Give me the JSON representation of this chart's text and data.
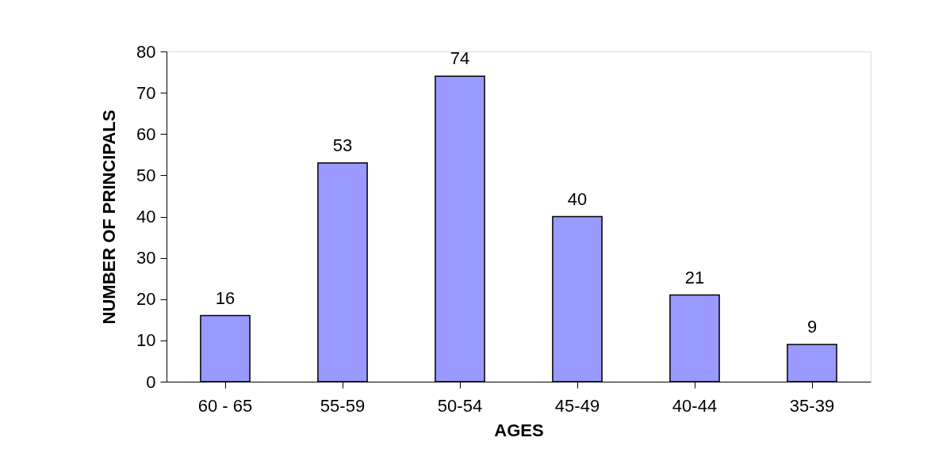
{
  "chart_data": {
    "type": "bar",
    "xlabel": "AGES",
    "ylabel": "NUMBER OF PRINCIPALS",
    "categories": [
      "60 - 65",
      "55-59",
      "50-54",
      "45-49",
      "40-44",
      "35-39"
    ],
    "values": [
      16,
      53,
      74,
      40,
      21,
      9
    ],
    "color": "#9999ff",
    "ylim": [
      0,
      80
    ],
    "yticks": [
      0,
      10,
      20,
      30,
      40,
      50,
      60,
      70,
      80
    ],
    "grid": false,
    "data_labels": true
  }
}
